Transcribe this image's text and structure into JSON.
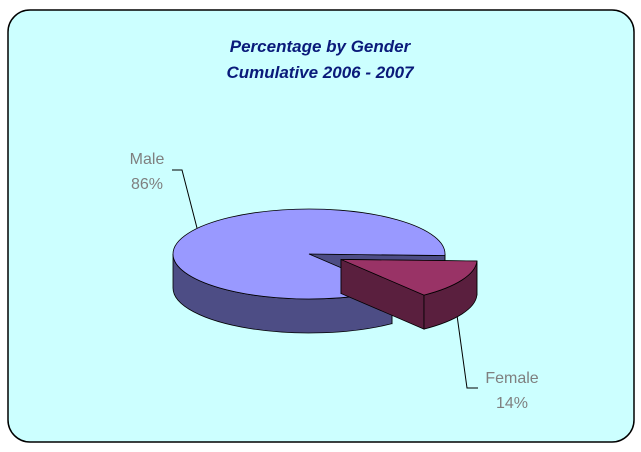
{
  "chart_data": {
    "type": "pie3d",
    "title": "Percentage by Gender",
    "subtitle": "Cumulative 2006 - 2007",
    "categories": [
      "Male",
      "Female"
    ],
    "values": [
      86,
      14
    ],
    "value_labels": [
      "86%",
      "14%"
    ],
    "colors": [
      "#9999ff",
      "#993366"
    ],
    "side_colors": [
      "#4d4d85",
      "#5a1f3e"
    ],
    "exploded": [
      false,
      true
    ]
  }
}
